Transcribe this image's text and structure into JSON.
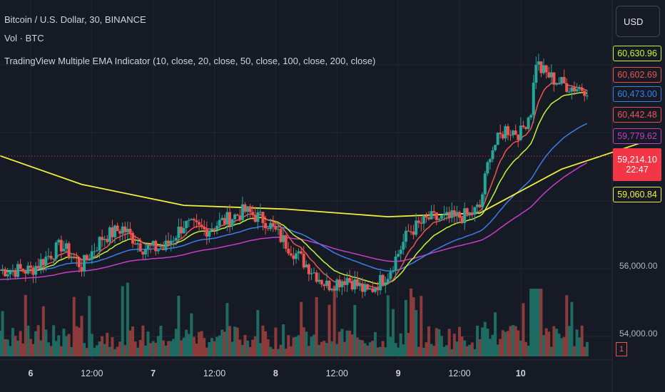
{
  "header": {
    "symbol_line": "Bitcoin / U.S. Dollar, 30, BINANCE",
    "volume_line": "Vol · BTC",
    "indicator_line": "TradingView Multiple EMA Indicator (10, close, 20, close, 50, close, 100, close, 200, close)"
  },
  "currency_button": "USD",
  "price_badges": [
    {
      "text": "60,630.96",
      "color": "#c3f53a"
    },
    {
      "text": "60,602.69",
      "color": "#ef5350"
    },
    {
      "text": "60,473.00",
      "color": "#3d7de8"
    },
    {
      "text": "60,442.48",
      "color": "#ef5350"
    },
    {
      "text": "59,779.62",
      "color": "#c83cc8"
    }
  ],
  "last_price": {
    "price": "59,214.10",
    "countdown": "22:47",
    "color": "#f23645"
  },
  "ema200_badge": {
    "text": "59,060.84",
    "color": "#f0f03c"
  },
  "y_axis_labels": [
    "56,000.00",
    "54,000.00"
  ],
  "x_axis_labels": [
    {
      "text": "6",
      "bold": true
    },
    {
      "text": "12:00",
      "bold": false
    },
    {
      "text": "7",
      "bold": true
    },
    {
      "text": "12:00",
      "bold": false
    },
    {
      "text": "8",
      "bold": true
    },
    {
      "text": "12:00",
      "bold": false
    },
    {
      "text": "9",
      "bold": true
    },
    {
      "text": "12:00",
      "bold": false
    },
    {
      "text": "10",
      "bold": true
    }
  ],
  "volume_badge": "1",
  "chart_data": {
    "type": "candlestick",
    "title": "Bitcoin / U.S. Dollar, 30, BINANCE",
    "y_range": [
      53400,
      62600
    ],
    "x_range_hours": [
      -6,
      110
    ],
    "colors": {
      "up": "#26a69a",
      "down": "#ef5350",
      "background": "#161a25",
      "grid": "#232632"
    },
    "ema_colors": {
      "ema10": "#ef5350",
      "ema20": "#c3f53a",
      "ema50": "#3d7de8",
      "ema100": "#c83cc8",
      "ema200": "#f0f03c"
    },
    "price_path": [
      [
        0,
        55700
      ],
      [
        6,
        56350
      ],
      [
        10,
        55800
      ],
      [
        14,
        56550
      ],
      [
        18,
        56800
      ],
      [
        22,
        56300
      ],
      [
        26,
        56250
      ],
      [
        30,
        56900
      ],
      [
        34,
        56750
      ],
      [
        38,
        57000
      ],
      [
        42,
        57250
      ],
      [
        46,
        57000
      ],
      [
        50,
        56400
      ],
      [
        54,
        55850
      ],
      [
        58,
        55300
      ],
      [
        62,
        55500
      ],
      [
        66,
        55100
      ],
      [
        70,
        55600
      ],
      [
        74,
        56700
      ],
      [
        78,
        57050
      ],
      [
        82,
        57050
      ],
      [
        86,
        57150
      ],
      [
        88,
        57350
      ],
      [
        90,
        58800
      ],
      [
        93,
        59400
      ],
      [
        96,
        59300
      ],
      [
        98,
        59900
      ],
      [
        99,
        61200
      ],
      [
        100,
        60950
      ],
      [
        103,
        60650
      ],
      [
        106,
        60500
      ],
      [
        110,
        60450
      ],
      [
        114,
        60350
      ],
      [
        118,
        60550
      ],
      [
        120,
        60480
      ]
    ],
    "ema200": [
      [
        -6,
        58700
      ],
      [
        10,
        57950
      ],
      [
        30,
        57400
      ],
      [
        50,
        57300
      ],
      [
        70,
        57100
      ],
      [
        88,
        57200
      ],
      [
        104,
        58350
      ],
      [
        120,
        59060
      ]
    ],
    "x_tick_hours": [
      0,
      12,
      24,
      36,
      48,
      60,
      72,
      84,
      96
    ]
  }
}
